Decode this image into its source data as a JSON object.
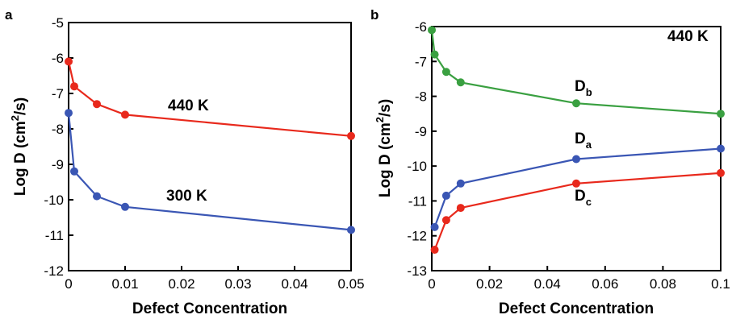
{
  "chart_data": [
    {
      "type": "line",
      "panel_label": "a",
      "xlabel": "Defect Concentration",
      "ylabel_main": "Log D (cm",
      "ylabel_sup": "2",
      "ylabel_end": "/s)",
      "xlim": [
        0,
        0.05
      ],
      "ylim": [
        -12,
        -5
      ],
      "xticks": [
        0,
        0.01,
        0.02,
        0.03,
        0.04,
        0.05
      ],
      "xtick_labels": [
        "0",
        "0.01",
        "0.02",
        "0.03",
        "0.04",
        "0.05"
      ],
      "yticks": [
        -12,
        -11,
        -10,
        -9,
        -8,
        -7,
        -6,
        -5
      ],
      "ytick_labels": [
        "-12",
        "-11",
        "-10",
        "-9",
        "-8",
        "-7",
        "-6",
        "-5"
      ],
      "grid": false,
      "series": [
        {
          "name": "440 K",
          "color": "#e8291c",
          "x": [
            0,
            0.001,
            0.005,
            0.01,
            0.05
          ],
          "y": [
            -6.1,
            -6.8,
            -7.3,
            -7.6,
            -8.2
          ]
        },
        {
          "name": "300 K",
          "color": "#3a56b4",
          "x": [
            0,
            0.001,
            0.005,
            0.01,
            0.05
          ],
          "y": [
            -7.55,
            -9.2,
            -9.9,
            -10.2,
            -10.85
          ]
        }
      ]
    },
    {
      "type": "line",
      "panel_label": "b",
      "title": "440 K",
      "xlabel": "Defect Concentration",
      "ylabel_main": "Log D (cm",
      "ylabel_sup": "2",
      "ylabel_end": "/s)",
      "xlim": [
        0,
        0.1
      ],
      "ylim": [
        -13,
        -6
      ],
      "xticks": [
        0,
        0.02,
        0.04,
        0.06,
        0.08,
        0.1
      ],
      "xtick_labels": [
        "0",
        "0.02",
        "0.04",
        "0.06",
        "0.08",
        "0.1"
      ],
      "yticks": [
        -13,
        -12,
        -11,
        -10,
        -9,
        -8,
        -7,
        -6
      ],
      "ytick_labels": [
        "-13",
        "-12",
        "-11",
        "-10",
        "-9",
        "-8",
        "-7",
        "-6"
      ],
      "grid": false,
      "series": [
        {
          "name": "D",
          "sub": "b",
          "color": "#3aa041",
          "x": [
            0,
            0.001,
            0.005,
            0.01,
            0.05,
            0.1
          ],
          "y": [
            -6.1,
            -6.8,
            -7.3,
            -7.6,
            -8.2,
            -8.5
          ]
        },
        {
          "name": "D",
          "sub": "a",
          "color": "#3a56b4",
          "x": [
            0.001,
            0.005,
            0.01,
            0.05,
            0.1
          ],
          "y": [
            -11.75,
            -10.85,
            -10.5,
            -9.8,
            -9.5
          ]
        },
        {
          "name": "D",
          "sub": "c",
          "color": "#e8291c",
          "x": [
            0.001,
            0.005,
            0.01,
            0.05,
            0.1
          ],
          "y": [
            -12.4,
            -11.55,
            -11.2,
            -10.5,
            -10.2
          ]
        }
      ]
    }
  ]
}
